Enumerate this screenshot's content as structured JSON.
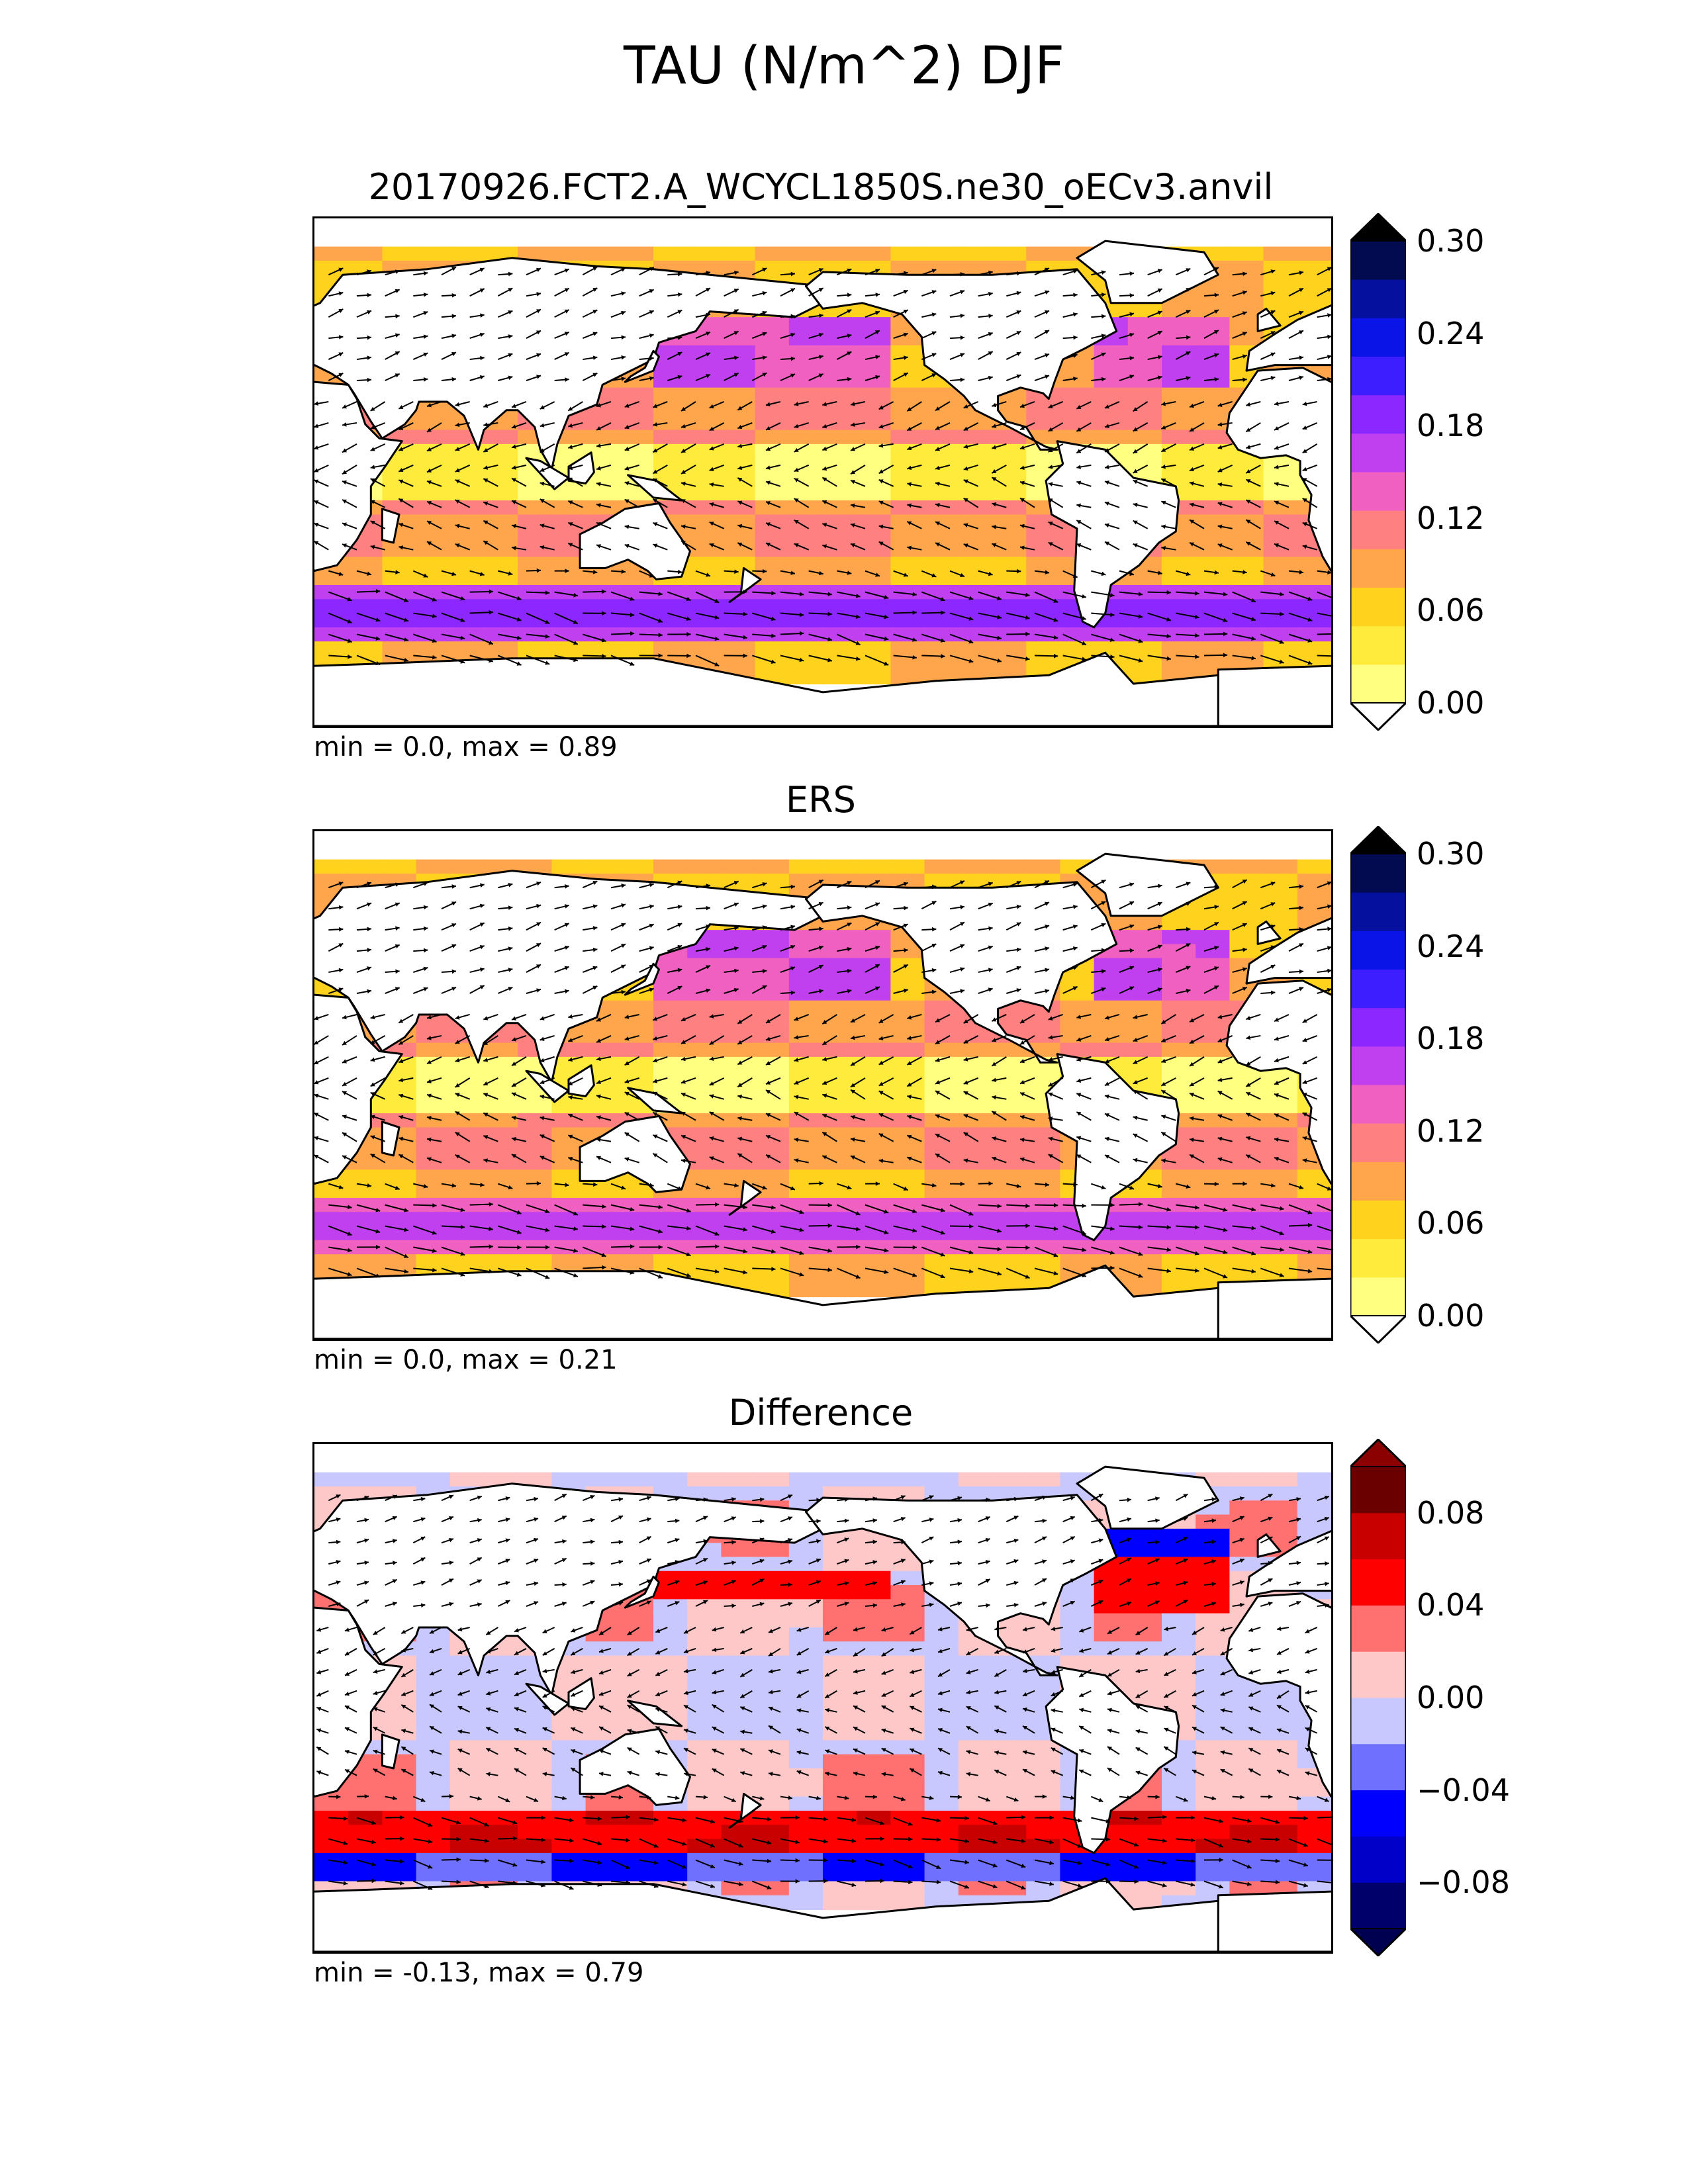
{
  "title": "TAU (N/m^2) DJF",
  "panels": [
    {
      "title": "20170926.FCT2.A_WCYCL1850S.ne30_oECv3.anvil",
      "stats": "min = 0.0, max = 0.89",
      "colorbar": {
        "ticks": [
          "0.30",
          "0.24",
          "0.18",
          "0.12",
          "0.06",
          "0.00"
        ],
        "levels": [
          "#ffff80",
          "#ffeb3b",
          "#ffd21e",
          "#ffa64d",
          "#ff8080",
          "#f060c0",
          "#c040f0",
          "#8c28ff",
          "#3c1eff",
          "#0a14e6",
          "#06109e",
          "#020a50"
        ],
        "extend_min_color": "#ffffff",
        "extend_max_color": "#000000"
      }
    },
    {
      "title": "ERS",
      "stats": "min = 0.0, max = 0.21",
      "colorbar": {
        "ticks": [
          "0.30",
          "0.24",
          "0.18",
          "0.12",
          "0.06",
          "0.00"
        ],
        "levels": [
          "#ffff80",
          "#ffeb3b",
          "#ffd21e",
          "#ffa64d",
          "#ff8080",
          "#f060c0",
          "#c040f0",
          "#8c28ff",
          "#3c1eff",
          "#0a14e6",
          "#06109e",
          "#020a50"
        ],
        "extend_min_color": "#ffffff",
        "extend_max_color": "#000000"
      }
    },
    {
      "title": "Difference",
      "stats": "min = -0.13, max = 0.79",
      "colorbar": {
        "ticks": [
          "0.08",
          "0.04",
          "0.00",
          "−0.04",
          "−0.08"
        ],
        "levels": [
          "#00006a",
          "#0000c8",
          "#0000ff",
          "#7070ff",
          "#c8c8ff",
          "#ffc8c8",
          "#ff7070",
          "#ff0000",
          "#c80000",
          "#6a0000"
        ],
        "extend_min_color": "#000050",
        "extend_max_color": "#8b0000"
      }
    }
  ],
  "chart_data": {
    "type": "heatmap",
    "title": "TAU (N/m^2) DJF",
    "panels": [
      {
        "name": "20170926.FCT2.A_WCYCL1850S.ne30_oECv3.anvil",
        "min": 0.0,
        "max": 0.89,
        "colorbar_range": [
          0.0,
          0.3
        ],
        "colorbar_ticks": [
          0.0,
          0.06,
          0.12,
          0.18,
          0.24,
          0.3
        ]
      },
      {
        "name": "ERS",
        "min": 0.0,
        "max": 0.21,
        "colorbar_range": [
          0.0,
          0.3
        ],
        "colorbar_ticks": [
          0.0,
          0.06,
          0.12,
          0.18,
          0.24,
          0.3
        ]
      },
      {
        "name": "Difference",
        "min": -0.13,
        "max": 0.79,
        "colorbar_range": [
          -0.1,
          0.1
        ],
        "colorbar_ticks": [
          -0.08,
          -0.04,
          0.0,
          0.04,
          0.08
        ]
      }
    ]
  }
}
